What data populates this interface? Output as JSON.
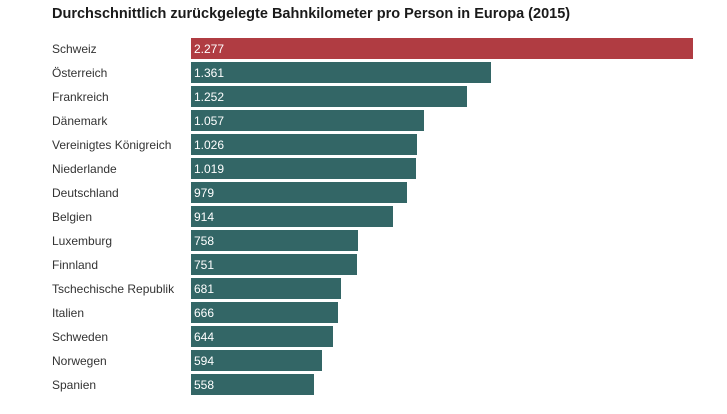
{
  "chart_data": {
    "type": "bar",
    "orientation": "horizontal",
    "title": "Durchschnittlich zurückgelegte Bahnkilometer pro Person in Europa (2015)",
    "categories": [
      "Schweiz",
      "Österreich",
      "Frankreich",
      "Dänemark",
      "Vereinigtes Königreich",
      "Niederlande",
      "Deutschland",
      "Belgien",
      "Luxemburg",
      "Finnland",
      "Tschechische Republik",
      "Italien",
      "Schweden",
      "Norwegen",
      "Spanien"
    ],
    "values": [
      2277,
      1361,
      1252,
      1057,
      1026,
      1019,
      979,
      914,
      758,
      751,
      681,
      666,
      644,
      594,
      558
    ],
    "value_labels": [
      "2.277",
      "1.361",
      "1.252",
      "1.057",
      "1.026",
      "1.019",
      "979",
      "914",
      "758",
      "751",
      "681",
      "666",
      "644",
      "594",
      "558"
    ],
    "highlight_category": "Schweiz",
    "colors": {
      "highlight": "#b03c42",
      "default": "#336666"
    },
    "xlim": [
      0,
      2277
    ],
    "grid": false,
    "legend": "none"
  }
}
